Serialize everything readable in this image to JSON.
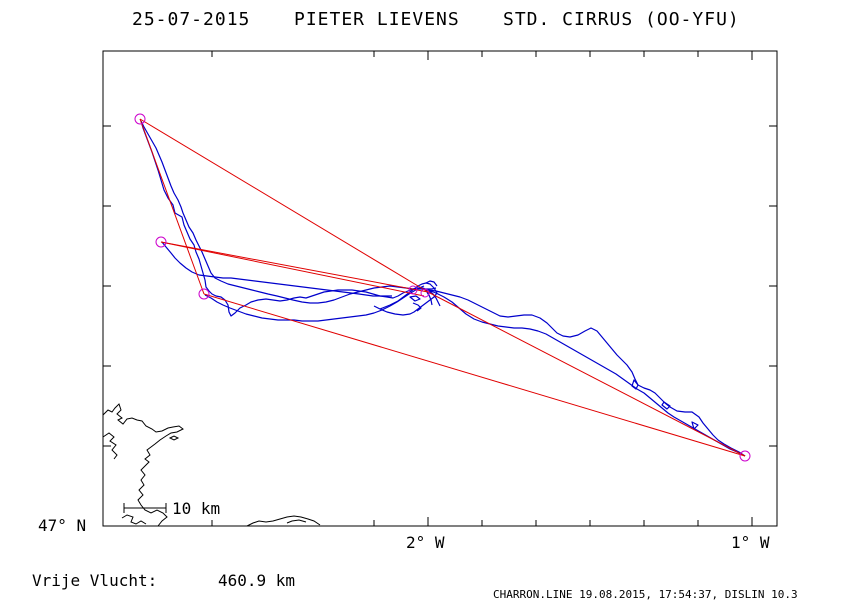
{
  "header": {
    "date": "25-07-2015",
    "pilot": "PIETER LIEVENS",
    "glider": "STD. CIRRUS (OO-YFU)"
  },
  "map": {
    "lat_label": "47° N",
    "lon_labels": [
      "2° W",
      "1° W"
    ],
    "scale_label": "10 km",
    "colors": {
      "frame": "#000000",
      "track": "#0000cc",
      "legs": "#e00000",
      "turnpoints": "#cc00cc",
      "coast": "#000000"
    }
  },
  "footer": {
    "free_flight_label": "Vrije Vlucht:",
    "free_flight_value": "460.9 km",
    "credits": "CHARRON.LINE 19.08.2015, 17:54:37, DISLIN 10.3"
  }
}
